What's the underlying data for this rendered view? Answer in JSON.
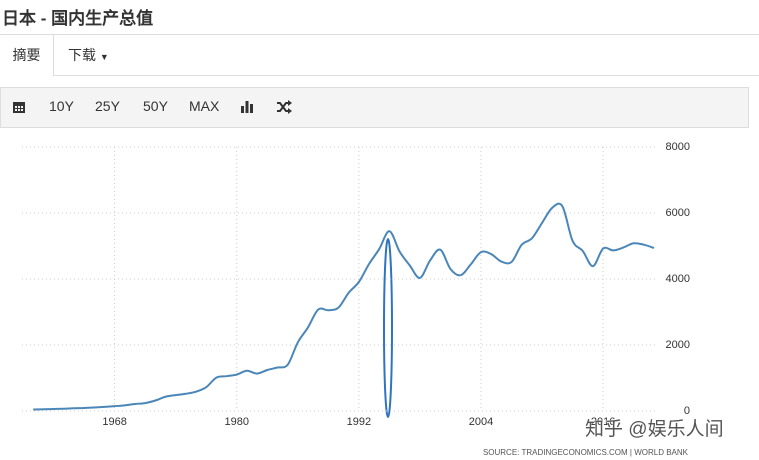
{
  "header": {
    "title": "日本 - 国内生产总值"
  },
  "tabs": [
    "摘要",
    "下载"
  ],
  "toolbar": [
    "10Y",
    "25Y",
    "50Y",
    "MAX"
  ],
  "chart_data": {
    "type": "line",
    "x": [
      1960,
      1961,
      1962,
      1963,
      1964,
      1965,
      1966,
      1967,
      1968,
      1969,
      1970,
      1971,
      1972,
      1973,
      1974,
      1975,
      1976,
      1977,
      1978,
      1979,
      1980,
      1981,
      1982,
      1983,
      1984,
      1985,
      1986,
      1987,
      1988,
      1989,
      1990,
      1991,
      1992,
      1993,
      1994,
      1995,
      1996,
      1997,
      1998,
      1999,
      2000,
      2001,
      2002,
      2003,
      2004,
      2005,
      2006,
      2007,
      2008,
      2009,
      2010,
      2011,
      2012,
      2013,
      2014,
      2015,
      2016,
      2017,
      2018,
      2019,
      2020,
      2021
    ],
    "series": [
      {
        "color": "#4a86b8",
        "values": [
          44,
          53,
          61,
          69,
          82,
          91,
          106,
          124,
          147,
          172,
          212,
          240,
          318,
          432,
          480,
          522,
          585,
          721,
          1013,
          1055,
          1105,
          1218,
          1134,
          1243,
          1318,
          1399,
          2078,
          2532,
          3072,
          3054,
          3133,
          3584,
          3909,
          4454,
          4907,
          5449,
          4833,
          4414,
          4033,
          4563,
          4888,
          4304,
          4115,
          4445,
          4815,
          4755,
          4530,
          4515,
          5038,
          5231,
          5700,
          6157,
          6203,
          5156,
          4850,
          4389,
          4923,
          4867,
          4955,
          5082,
          5040,
          4941
        ]
      }
    ],
    "xlim": [
      1958.9,
      2021.1
    ],
    "xticks": [
      1968,
      1980,
      1992,
      2004,
      2016
    ],
    "ylim": [
      0,
      8000
    ],
    "yticks": [
      0,
      2000,
      4000,
      6000,
      8000
    ],
    "grid": true,
    "source": "SOURCE: TRADINGECONOMICS.COM | WORLD BANK"
  },
  "watermark": "知乎 @娱乐人间"
}
